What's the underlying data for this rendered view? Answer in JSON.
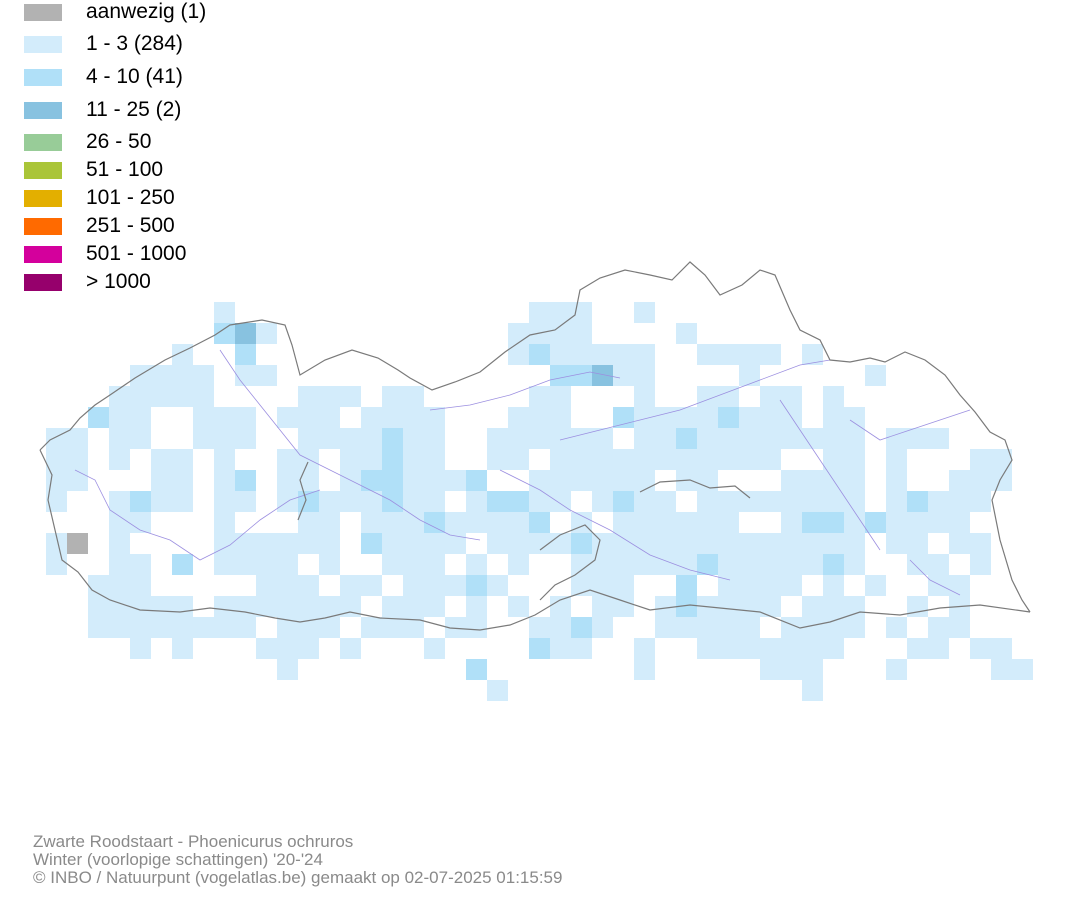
{
  "legend": {
    "items": [
      {
        "label": "aanwezig (1)",
        "color": "#b2b2b2"
      },
      {
        "label": "1 - 3 (284)",
        "color": "#d3ecfb"
      },
      {
        "label": "4 - 10 (41)",
        "color": "#b0e0f8"
      },
      {
        "label": "11 - 25 (2)",
        "color": "#88c2e0"
      },
      {
        "label": "26 - 50",
        "color": "#98cc98"
      },
      {
        "label": "51 - 100",
        "color": "#aac538"
      },
      {
        "label": "101 - 250",
        "color": "#e3af00"
      },
      {
        "label": "251 - 500",
        "color": "#ff6a00"
      },
      {
        "label": "501 - 1000",
        "color": "#d4009c"
      },
      {
        "label": "> 1000",
        "color": "#96006c"
      }
    ]
  },
  "map": {
    "border_color": "#7a7a7a",
    "river_color": "#9c8fe0"
  },
  "credits": {
    "species": "Zwarte Roodstaart - Phoenicurus ochruros",
    "season": "Winter (voorlopige schattingen) '20-'24",
    "copyright": "© INBO / Natuurpunt (vogelatlas.be) gemaakt op 02-07-2025 01:15:59"
  }
}
